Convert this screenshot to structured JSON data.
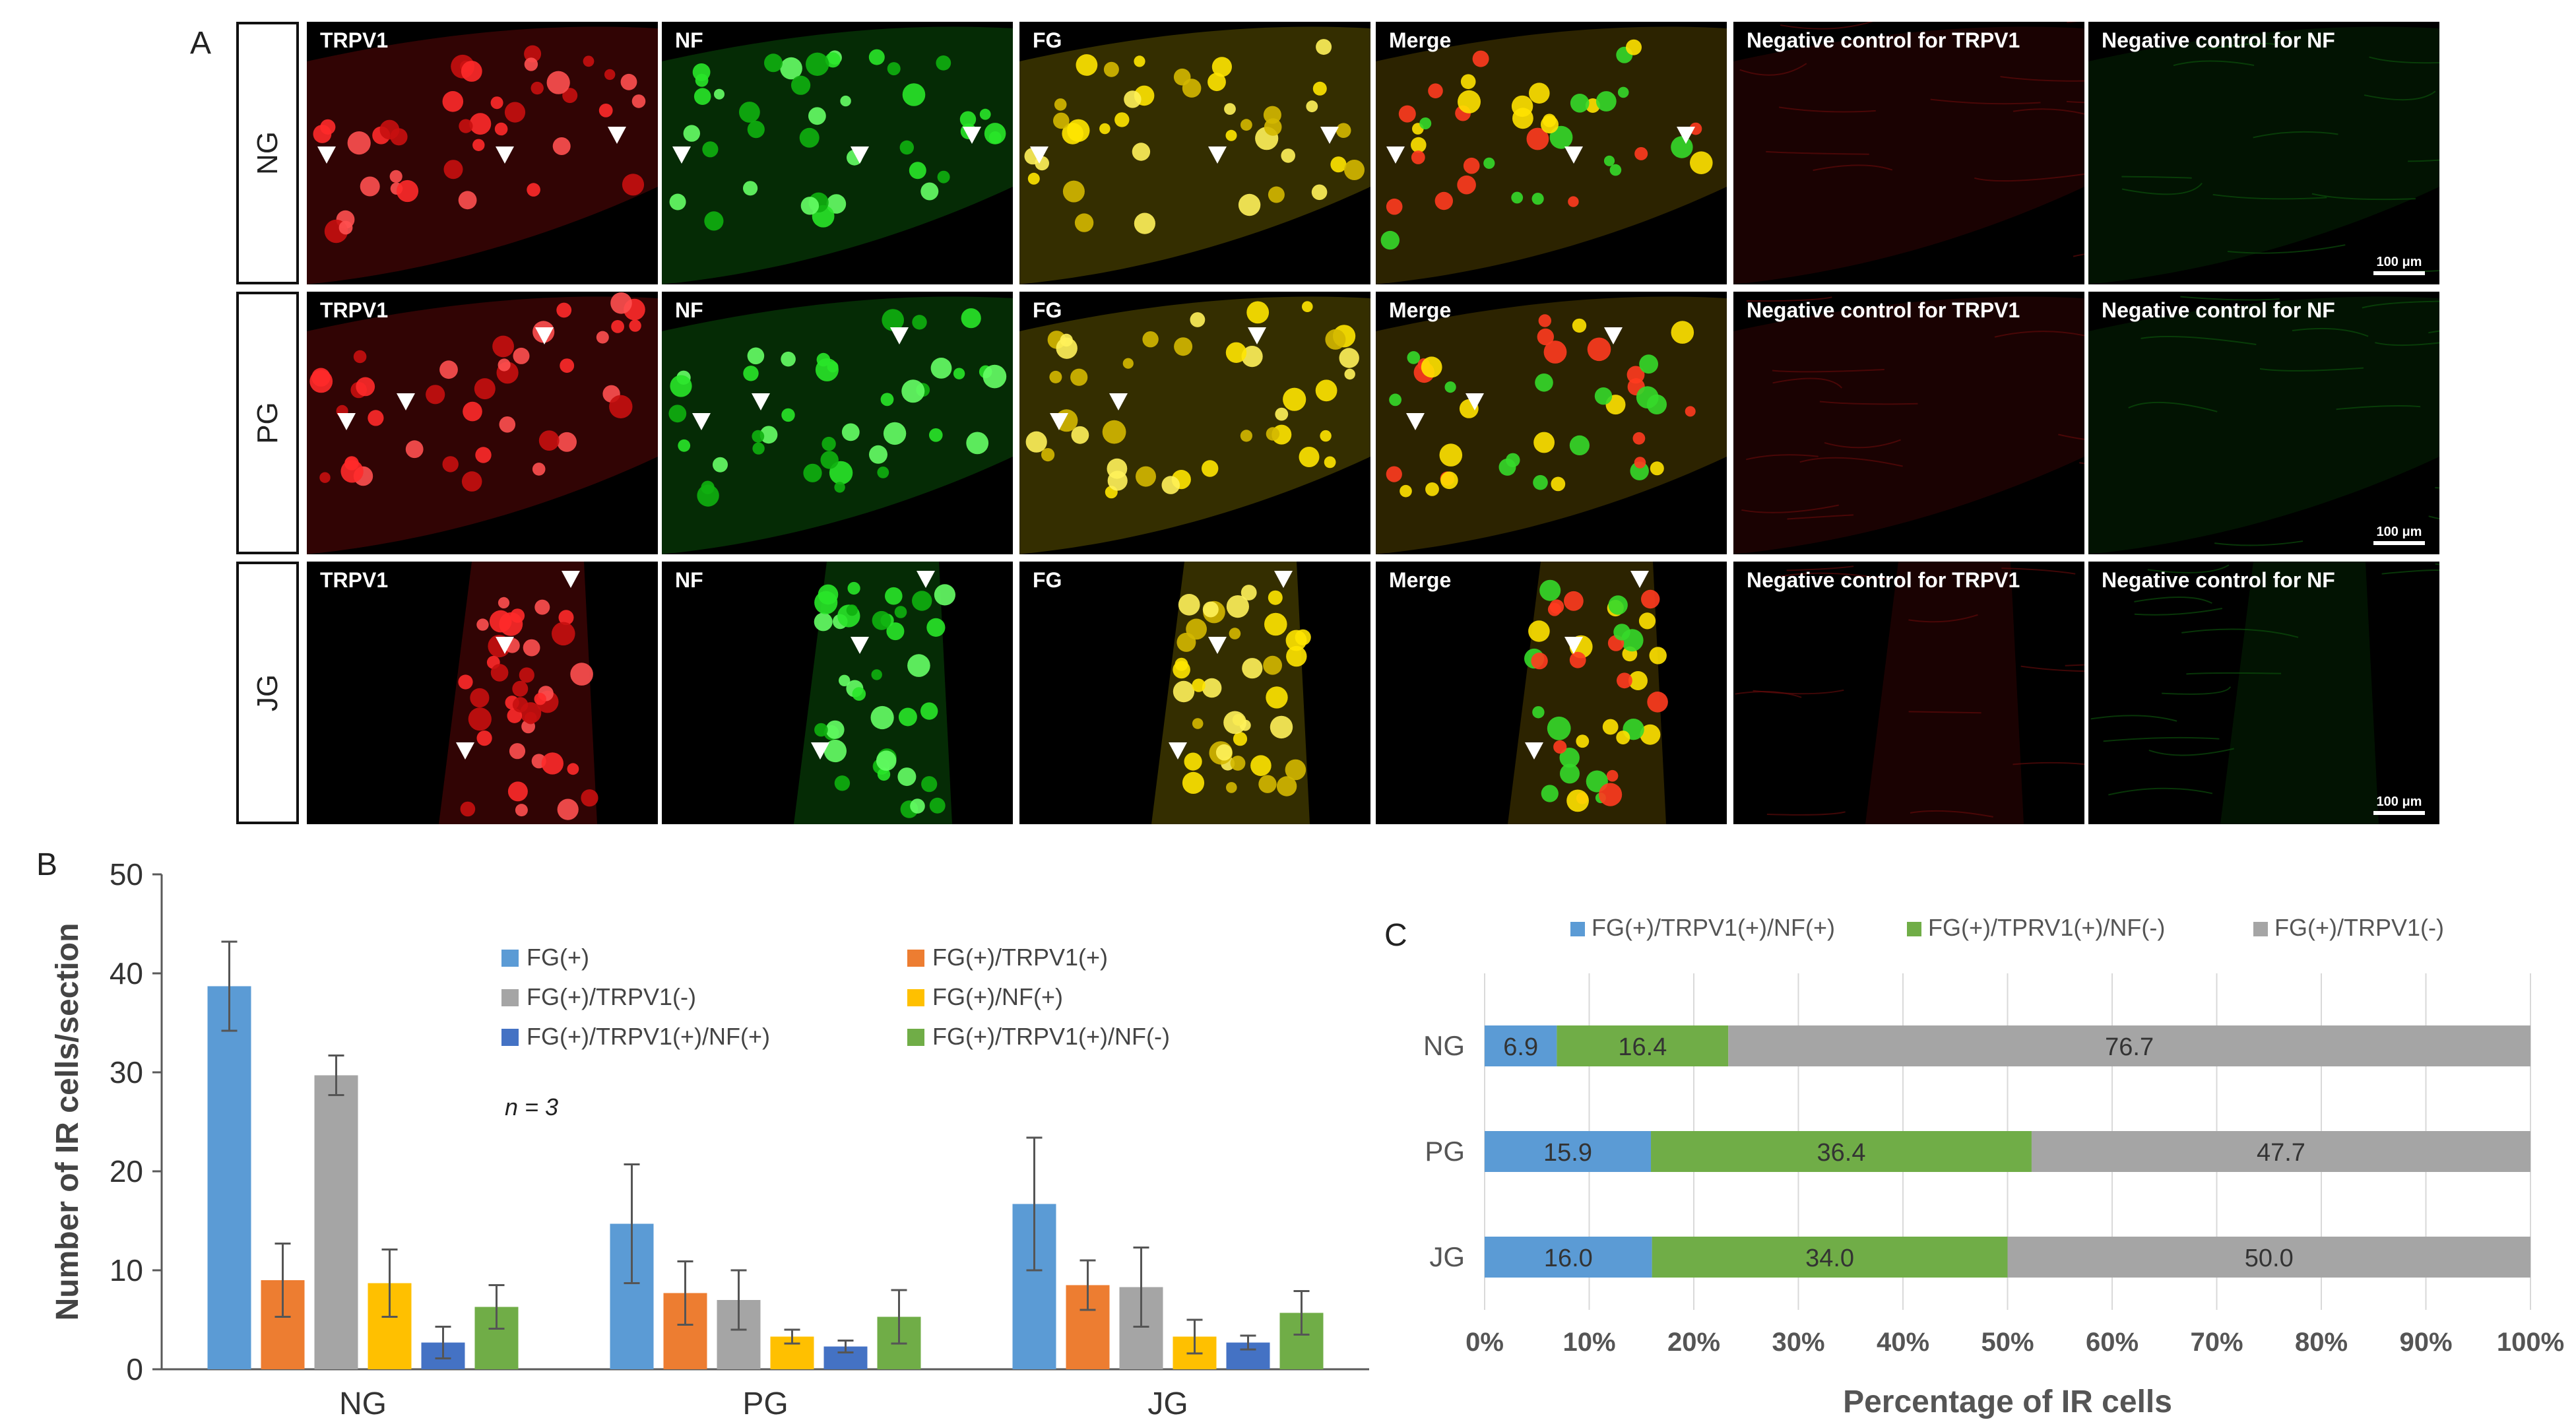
{
  "panel_labels": {
    "a": "A",
    "b": "B",
    "c": "C"
  },
  "panel_a": {
    "rows": [
      {
        "label": "NG",
        "scale_label": "100 μm"
      },
      {
        "label": "PG",
        "scale_label": "100 μm"
      },
      {
        "label": "JG",
        "scale_label": "100 μm"
      }
    ],
    "columns": [
      {
        "label": "TRPV1",
        "color": "#e01010"
      },
      {
        "label": "NF",
        "color": "#16c416"
      },
      {
        "label": "FG",
        "color": "#ecd300"
      },
      {
        "label": "Merge",
        "color": "#c8a000"
      },
      {
        "label": "Negative control for TRPV1",
        "color": "#3a0505"
      },
      {
        "label": "Negative control for NF",
        "color": "#052a05"
      }
    ]
  },
  "chart_b": {
    "type": "bar",
    "categories": [
      "NG",
      "PG",
      "JG"
    ],
    "ylabel": "Number of IR cells/section",
    "ylim": [
      0,
      50
    ],
    "yticks": [
      "0",
      "10",
      "20",
      "30",
      "40",
      "50"
    ],
    "annotation": "n = 3",
    "series": [
      {
        "name": "FG(+)",
        "color": "#5b9bd5",
        "values": [
          38.7,
          14.7,
          16.7
        ],
        "errors": [
          4.5,
          6.0,
          6.7
        ]
      },
      {
        "name": "FG(+)/TRPV1(+)",
        "color": "#ed7d31",
        "values": [
          9.0,
          7.7,
          8.5
        ],
        "errors": [
          3.7,
          3.2,
          2.5
        ]
      },
      {
        "name": "FG(+)/TRPV1(-)",
        "color": "#a5a5a5",
        "values": [
          29.7,
          7.0,
          8.3
        ],
        "errors": [
          2.0,
          3.0,
          4.0
        ]
      },
      {
        "name": "FG(+)/NF(+)",
        "color": "#ffc000",
        "values": [
          8.7,
          3.3,
          3.3
        ],
        "errors": [
          3.4,
          0.7,
          1.7
        ]
      },
      {
        "name": "FG(+)/TRPV1(+)/NF(+)",
        "color": "#4472c4",
        "values": [
          2.7,
          2.3,
          2.7
        ],
        "errors": [
          1.6,
          0.6,
          0.7
        ]
      },
      {
        "name": "FG(+)/TRPV1(+)/NF(-)",
        "color": "#70ad47",
        "values": [
          6.3,
          5.3,
          5.7
        ],
        "errors": [
          2.2,
          2.7,
          2.2
        ]
      }
    ]
  },
  "chart_c": {
    "type": "stacked-bar-horizontal",
    "categories": [
      "NG",
      "PG",
      "JG"
    ],
    "xlabel": "Percentage of IR cells",
    "xticks": [
      "0%",
      "10%",
      "20%",
      "30%",
      "40%",
      "50%",
      "60%",
      "70%",
      "80%",
      "90%",
      "100%"
    ],
    "series": [
      {
        "name": "FG(+)/TRPV1(+)/NF(+)",
        "color": "#5b9bd5",
        "values": [
          6.9,
          15.9,
          16.0
        ],
        "labels": [
          "6.9",
          "15.9",
          "16.0"
        ]
      },
      {
        "name": "FG(+)/TPRV1(+)/NF(-)",
        "color": "#70ad47",
        "values": [
          16.4,
          36.4,
          34.0
        ],
        "labels": [
          "16.4",
          "36.4",
          "34.0"
        ]
      },
      {
        "name": "FG(+)/TRPV1(-)",
        "color": "#a5a5a5",
        "values": [
          76.7,
          47.7,
          50.0
        ],
        "labels": [
          "76.7",
          "47.7",
          "50.0"
        ]
      }
    ]
  }
}
